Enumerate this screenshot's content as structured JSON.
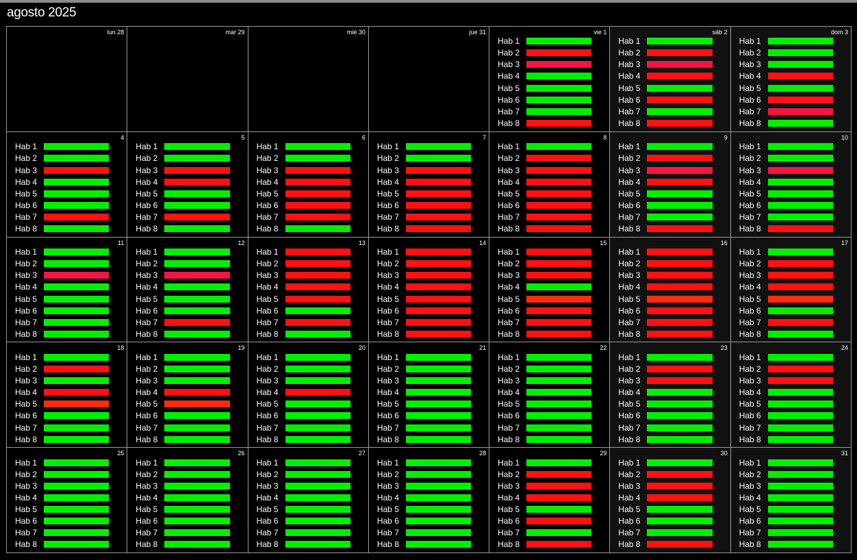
{
  "title": "agosto 2025",
  "colors": {
    "free": "#00f000",
    "busy": "#ff1111",
    "pink": "#f51445",
    "orange": "#ff2a10"
  },
  "room_labels": [
    "Hab 1",
    "Hab 2",
    "Hab 3",
    "Hab 4",
    "Hab 5",
    "Hab 6",
    "Hab 7",
    "Hab 8"
  ],
  "days": [
    {
      "label": "lun 28",
      "empty": true
    },
    {
      "label": "mar 29",
      "empty": true
    },
    {
      "label": "mié 30",
      "empty": true
    },
    {
      "label": "jue 31",
      "empty": true
    },
    {
      "label": "vie 1",
      "rooms": [
        "free",
        "busy",
        "pink",
        "free",
        "free",
        "free",
        "free",
        "busy"
      ]
    },
    {
      "label": "sáb 2",
      "rooms": [
        "free",
        "busy",
        "pink",
        "busy",
        "free",
        "busy",
        "free",
        "busy"
      ]
    },
    {
      "label": "dom 3",
      "rooms": [
        "free",
        "free",
        "free",
        "busy",
        "free",
        "busy",
        "pink",
        "free"
      ]
    },
    {
      "label": "4",
      "rooms": [
        "free",
        "free",
        "busy",
        "free",
        "free",
        "free",
        "busy",
        "free"
      ]
    },
    {
      "label": "5",
      "rooms": [
        "free",
        "free",
        "busy",
        "busy",
        "free",
        "free",
        "busy",
        "free"
      ]
    },
    {
      "label": "6",
      "rooms": [
        "free",
        "free",
        "busy",
        "busy",
        "busy",
        "busy",
        "busy",
        "free"
      ]
    },
    {
      "label": "7",
      "rooms": [
        "free",
        "free",
        "busy",
        "busy",
        "busy",
        "busy",
        "busy",
        "busy"
      ]
    },
    {
      "label": "8",
      "rooms": [
        "free",
        "busy",
        "busy",
        "busy",
        "busy",
        "busy",
        "busy",
        "busy"
      ]
    },
    {
      "label": "9",
      "rooms": [
        "free",
        "busy",
        "pink",
        "busy",
        "free",
        "free",
        "free",
        "busy"
      ]
    },
    {
      "label": "10",
      "rooms": [
        "free",
        "free",
        "pink",
        "free",
        "free",
        "free",
        "free",
        "busy"
      ]
    },
    {
      "label": "11",
      "rooms": [
        "free",
        "free",
        "pink",
        "free",
        "free",
        "free",
        "free",
        "free"
      ]
    },
    {
      "label": "12",
      "rooms": [
        "free",
        "free",
        "pink",
        "free",
        "free",
        "free",
        "busy",
        "free"
      ]
    },
    {
      "label": "13",
      "rooms": [
        "busy",
        "busy",
        "busy",
        "busy",
        "busy",
        "free",
        "busy",
        "free"
      ]
    },
    {
      "label": "14",
      "rooms": [
        "busy",
        "busy",
        "busy",
        "busy",
        "busy",
        "busy",
        "busy",
        "busy"
      ]
    },
    {
      "label": "15",
      "rooms": [
        "busy",
        "busy",
        "busy",
        "free",
        "orange",
        "busy",
        "busy",
        "busy"
      ]
    },
    {
      "label": "16",
      "rooms": [
        "busy",
        "busy",
        "busy",
        "busy",
        "orange",
        "busy",
        "busy",
        "busy"
      ]
    },
    {
      "label": "17",
      "rooms": [
        "free",
        "busy",
        "busy",
        "busy",
        "orange",
        "free",
        "busy",
        "free"
      ]
    },
    {
      "label": "18",
      "rooms": [
        "free",
        "busy",
        "free",
        "busy",
        "orange",
        "free",
        "free",
        "free"
      ]
    },
    {
      "label": "19",
      "rooms": [
        "free",
        "free",
        "free",
        "busy",
        "orange",
        "free",
        "free",
        "free"
      ]
    },
    {
      "label": "20",
      "rooms": [
        "free",
        "free",
        "free",
        "busy",
        "free",
        "free",
        "free",
        "free"
      ]
    },
    {
      "label": "21",
      "rooms": [
        "free",
        "free",
        "free",
        "free",
        "free",
        "free",
        "free",
        "free"
      ]
    },
    {
      "label": "22",
      "rooms": [
        "free",
        "free",
        "free",
        "free",
        "free",
        "free",
        "free",
        "free"
      ]
    },
    {
      "label": "23",
      "rooms": [
        "free",
        "busy",
        "busy",
        "free",
        "free",
        "free",
        "free",
        "free"
      ]
    },
    {
      "label": "24",
      "rooms": [
        "free",
        "busy",
        "busy",
        "free",
        "free",
        "free",
        "free",
        "free"
      ]
    },
    {
      "label": "25",
      "rooms": [
        "free",
        "free",
        "free",
        "free",
        "free",
        "free",
        "free",
        "free"
      ]
    },
    {
      "label": "26",
      "rooms": [
        "free",
        "free",
        "free",
        "free",
        "free",
        "free",
        "free",
        "free"
      ]
    },
    {
      "label": "27",
      "rooms": [
        "free",
        "free",
        "free",
        "free",
        "free",
        "free",
        "free",
        "free"
      ]
    },
    {
      "label": "28",
      "rooms": [
        "free",
        "free",
        "free",
        "free",
        "free",
        "free",
        "free",
        "free"
      ]
    },
    {
      "label": "29",
      "rooms": [
        "free",
        "busy",
        "busy",
        "busy",
        "free",
        "busy",
        "free",
        "busy"
      ]
    },
    {
      "label": "30",
      "rooms": [
        "free",
        "busy",
        "busy",
        "busy",
        "free",
        "free",
        "free",
        "busy"
      ]
    },
    {
      "label": "31",
      "rooms": [
        "free",
        "free",
        "free",
        "free",
        "free",
        "free",
        "free",
        "free"
      ]
    }
  ]
}
